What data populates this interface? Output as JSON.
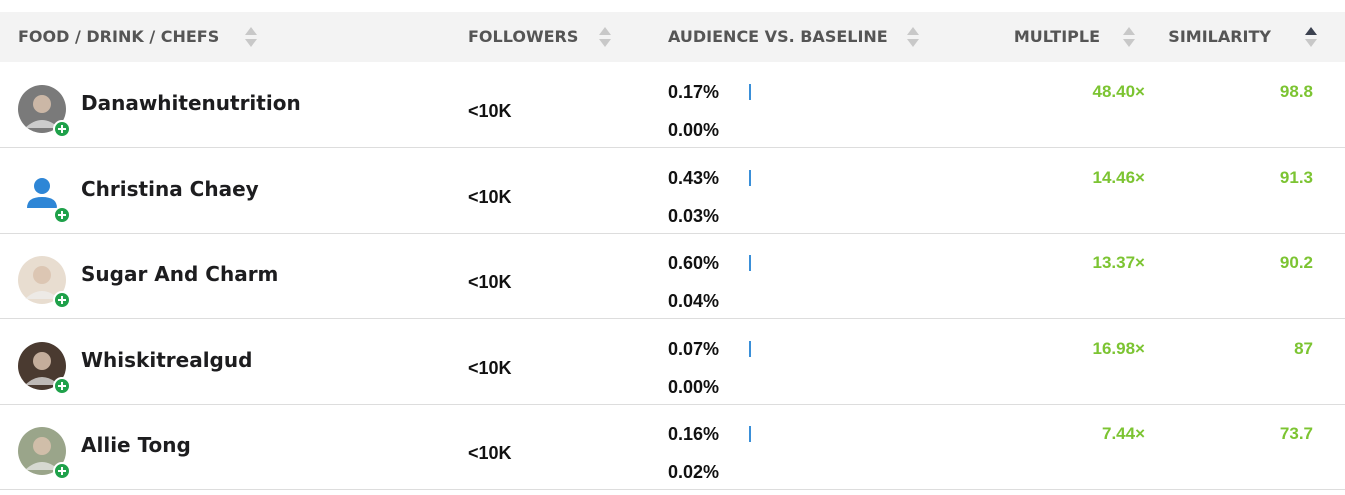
{
  "header": {
    "columns": [
      "FOOD / DRINK / CHEFS",
      "FOLLOWERS",
      "AUDIENCE VS. BASELINE",
      "MULTIPLE",
      "SIMILARITY"
    ]
  },
  "table": {
    "rows": [
      {
        "name": "Danawhitenutrition",
        "followers": "<10K",
        "audience": "0.17%",
        "baseline": "0.00%",
        "multiple": "48.40×",
        "similarity": "98.8"
      },
      {
        "name": "Christina Chaey",
        "followers": "<10K",
        "audience": "0.43%",
        "baseline": "0.03%",
        "multiple": "14.46×",
        "similarity": "91.3"
      },
      {
        "name": "Sugar And Charm",
        "followers": "<10K",
        "audience": "0.60%",
        "baseline": "0.04%",
        "multiple": "13.37×",
        "similarity": "90.2"
      },
      {
        "name": "Whiskitrealgud",
        "followers": "<10K",
        "audience": "0.07%",
        "baseline": "0.00%",
        "multiple": "16.98×",
        "similarity": "87"
      },
      {
        "name": "Allie Tong",
        "followers": "<10K",
        "audience": "0.16%",
        "baseline": "0.02%",
        "multiple": "7.44×",
        "similarity": "73.7"
      }
    ]
  }
}
